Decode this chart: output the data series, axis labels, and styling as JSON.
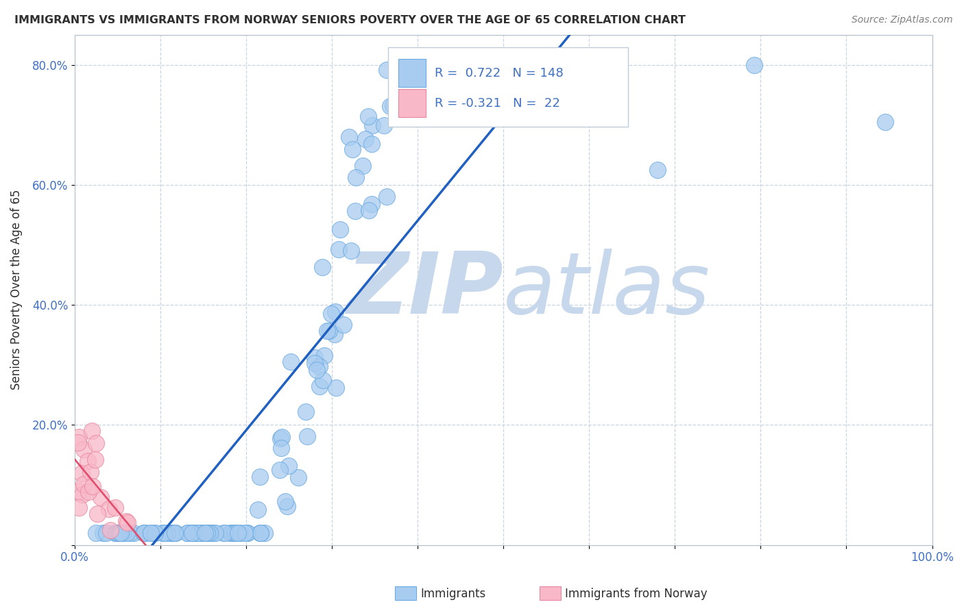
{
  "title": "IMMIGRANTS VS IMMIGRANTS FROM NORWAY SENIORS POVERTY OVER THE AGE OF 65 CORRELATION CHART",
  "source": "Source: ZipAtlas.com",
  "ylabel": "Seniors Poverty Over the Age of 65",
  "xlim": [
    0,
    1.0
  ],
  "ylim": [
    0,
    0.85
  ],
  "xtick_labels": [
    "0.0%",
    "",
    "",
    "",
    "",
    "",
    "",
    "",
    "",
    "",
    "100.0%"
  ],
  "ytick_labels": [
    "",
    "20.0%",
    "40.0%",
    "60.0%",
    "80.0%"
  ],
  "blue_R": 0.722,
  "blue_N": 148,
  "pink_R": -0.321,
  "pink_N": 22,
  "blue_fill_color": "#A8CCF0",
  "blue_edge_color": "#6AAAE0",
  "pink_fill_color": "#F8B8C8",
  "pink_edge_color": "#E888A0",
  "blue_line_color": "#2060C0",
  "pink_line_color": "#E05070",
  "legend_blue_label": "Immigrants",
  "legend_pink_label": "Immigrants from Norway",
  "watermark_zip": "ZIP",
  "watermark_atlas": "atlas",
  "watermark_color": "#C8D8EC",
  "title_color": "#303030",
  "axis_label_color": "#303030",
  "tick_color": "#4070C0",
  "grid_color": "#C8D4E0",
  "background_color": "#FFFFFF",
  "legend_text_color": "#4070C0",
  "legend_border_color": "#C0CCD8"
}
